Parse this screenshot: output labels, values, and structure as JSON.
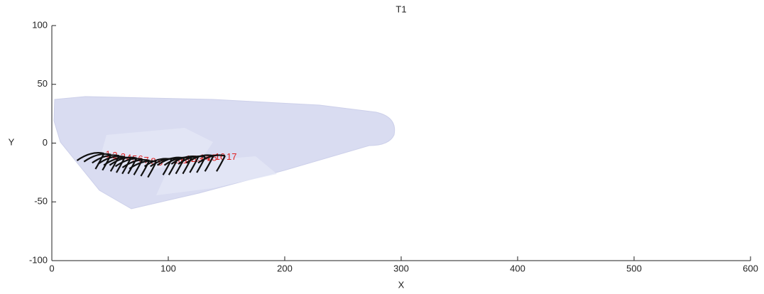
{
  "chart_data": {
    "type": "scatter",
    "title": "T1",
    "x_label": "X",
    "y_label": "Y",
    "xlim": [
      0,
      600
    ],
    "ylim": [
      -100,
      100
    ],
    "xticks": [
      0,
      100,
      200,
      300,
      400,
      500,
      600
    ],
    "yticks": [
      -100,
      -50,
      0,
      50,
      100
    ],
    "grid": false,
    "series": [
      {
        "color": "#e02020",
        "x": [
          46,
          52,
          59,
          64,
          69,
          74,
          79,
          85,
          91,
          104,
          109,
          115,
          121,
          127,
          133,
          140,
          150
        ],
        "values": [
          -10,
          -11,
          -12,
          -13,
          -14,
          -14,
          -15,
          -16,
          -17,
          -15,
          -15,
          -14,
          -14,
          -13,
          -13,
          -12,
          -12
        ],
        "labels": [
          "1",
          "2",
          "3",
          "4",
          "5",
          "6",
          "7",
          "8",
          "9",
          "10",
          "11",
          "12",
          "13",
          "14",
          "15",
          "16",
          "17"
        ]
      }
    ]
  }
}
